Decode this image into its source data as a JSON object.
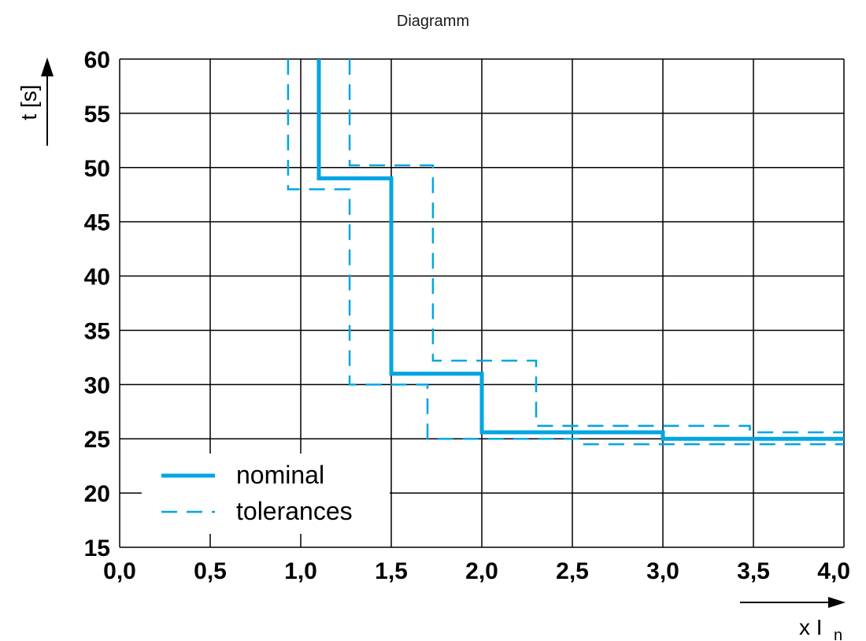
{
  "title": "Diagramm",
  "chart_data": {
    "type": "line",
    "title": "Diagramm",
    "xlabel": "x I",
    "xlabel_sub": "n",
    "ylabel": "t [s]",
    "xlim": [
      0,
      4
    ],
    "ylim": [
      15,
      60
    ],
    "xticks": [
      "0,0",
      "0,5",
      "1,0",
      "1,5",
      "2,0",
      "2,5",
      "3,0",
      "3,5",
      "4,0"
    ],
    "yticks": [
      "15",
      "20",
      "25",
      "30",
      "35",
      "40",
      "45",
      "50",
      "55",
      "60"
    ],
    "grid": true,
    "legend_position": "bottom-left",
    "colors": {
      "series": "#00a6e2",
      "grid": "#000000"
    },
    "series": [
      {
        "name": "nominal",
        "style": "solid",
        "x": [
          1.1,
          1.1,
          1.5,
          1.5,
          2.0,
          2.0,
          3.0,
          3.0,
          4.0
        ],
        "y": [
          60,
          49,
          49,
          31,
          31,
          25.6,
          25.6,
          25,
          25
        ]
      },
      {
        "name": "tolerances",
        "style": "dashed",
        "x": [
          0.93,
          0.93,
          1.27,
          1.27,
          1.7,
          1.7,
          2.55,
          2.55,
          4.0
        ],
        "y": [
          60,
          48,
          48,
          30,
          30,
          25,
          25,
          24.5,
          24.5
        ]
      },
      {
        "name": "",
        "style": "dashed",
        "x": [
          1.27,
          1.27,
          1.73,
          1.73,
          2.3,
          2.3,
          3.48,
          3.48,
          4.0
        ],
        "y": [
          60,
          50.2,
          50.2,
          32.2,
          32.2,
          26.2,
          26.2,
          25.6,
          25.6
        ]
      }
    ]
  }
}
